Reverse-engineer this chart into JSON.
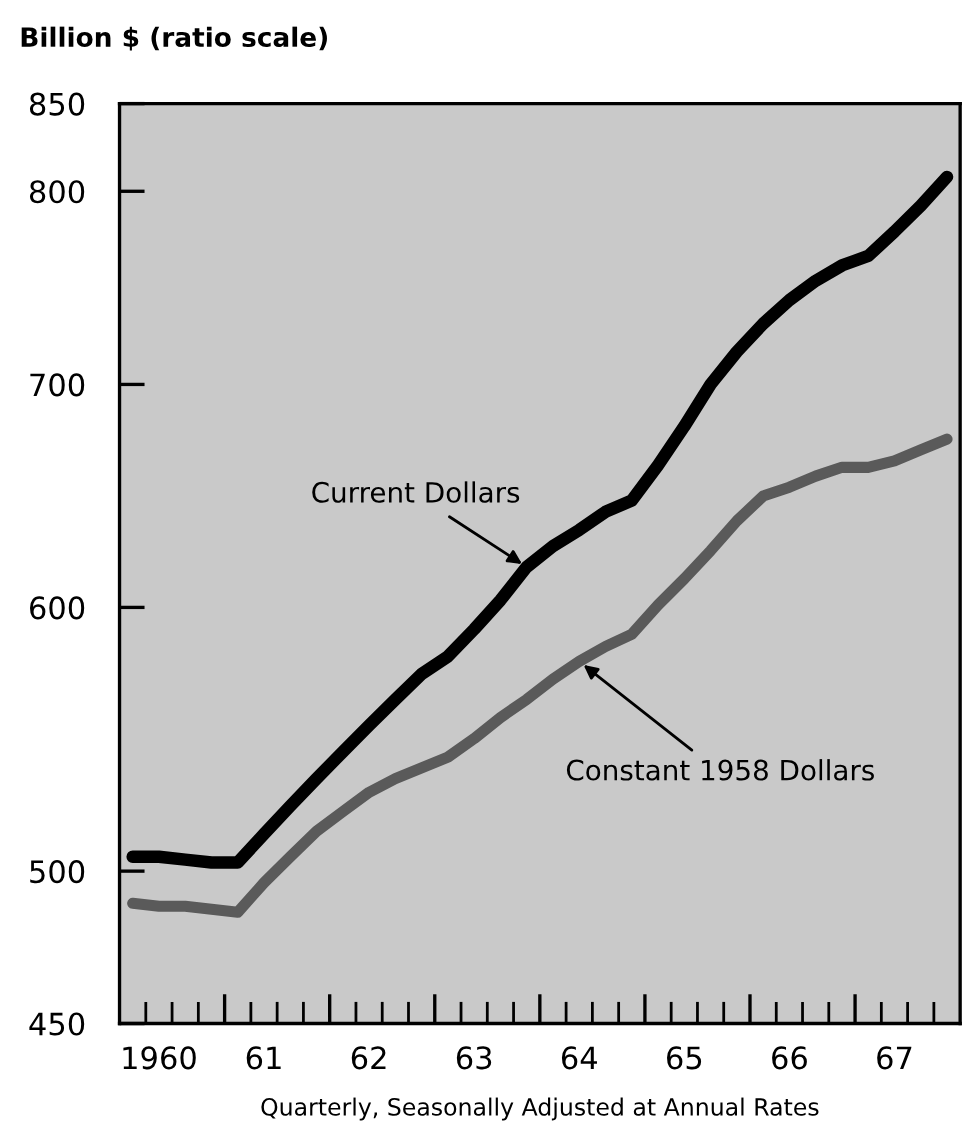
{
  "chart_data": {
    "type": "line",
    "ylabel": "Billion $ (ratio scale)",
    "xlabel": "Quarterly, Seasonally Adjusted at Annual Rates",
    "categories": [
      null,
      "1960",
      null,
      null,
      null,
      "61",
      null,
      null,
      null,
      "62",
      null,
      null,
      null,
      "63",
      null,
      null,
      null,
      "64",
      null,
      null,
      null,
      "65",
      null,
      null,
      null,
      "66",
      null,
      null,
      null,
      "67",
      null,
      null
    ],
    "series": [
      {
        "name": "Current Dollars",
        "color": "#000000",
        "values": [
          505,
          505,
          504,
          503,
          503,
          513,
          523,
          533,
          543,
          553,
          563,
          573,
          580,
          591,
          603,
          617,
          626,
          633,
          641,
          646,
          662,
          680,
          700,
          716,
          730,
          742,
          752,
          760,
          765,
          778,
          792,
          808
        ]
      },
      {
        "name": "Constant 1958 Dollars",
        "color": "#5a5a5a",
        "values": [
          489,
          488,
          488,
          487,
          486,
          496,
          505,
          514,
          521,
          528,
          533,
          537,
          541,
          548,
          556,
          563,
          571,
          578,
          584,
          589,
          601,
          612,
          624,
          637,
          648,
          652,
          657,
          661,
          661,
          664,
          669,
          674
        ]
      }
    ],
    "log": "y",
    "ylim": [
      450,
      850
    ],
    "yticks": [
      450,
      500,
      600,
      700,
      800,
      850
    ],
    "grid": false,
    "legend": false
  }
}
